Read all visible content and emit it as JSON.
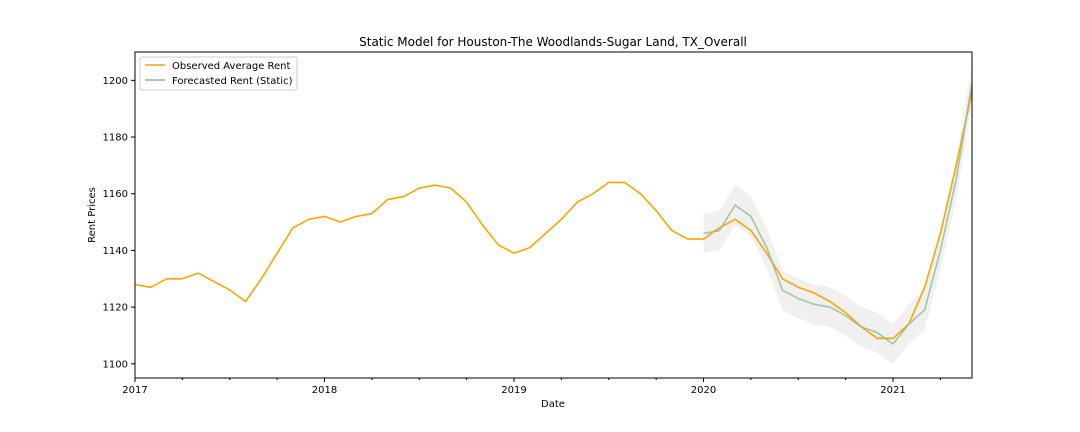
{
  "chart_data": {
    "type": "line",
    "title": "Static Model for Houston-The Woodlands-Sugar Land, TX_Overall",
    "xlabel": "Date",
    "ylabel": "Rent Prices",
    "xlim": [
      "2017-01",
      "2021-06"
    ],
    "ylim": [
      1095,
      1210
    ],
    "x_ticks": [
      "2017",
      "2018",
      "2019",
      "2020",
      "2021"
    ],
    "y_ticks": [
      1100,
      1120,
      1140,
      1160,
      1180,
      1200
    ],
    "grid": false,
    "legend": "top-left",
    "series": [
      {
        "name": "Observed Average Rent",
        "color": "#ffa500",
        "x": [
          "2017-01",
          "2017-02",
          "2017-03",
          "2017-04",
          "2017-05",
          "2017-06",
          "2017-07",
          "2017-08",
          "2017-09",
          "2017-10",
          "2017-11",
          "2017-12",
          "2018-01",
          "2018-02",
          "2018-03",
          "2018-04",
          "2018-05",
          "2018-06",
          "2018-07",
          "2018-08",
          "2018-09",
          "2018-10",
          "2018-11",
          "2018-12",
          "2019-01",
          "2019-02",
          "2019-03",
          "2019-04",
          "2019-05",
          "2019-06",
          "2019-07",
          "2019-08",
          "2019-09",
          "2019-10",
          "2019-11",
          "2019-12",
          "2020-01",
          "2020-02",
          "2020-03",
          "2020-04",
          "2020-05",
          "2020-06",
          "2020-07",
          "2020-08",
          "2020-09",
          "2020-10",
          "2020-11",
          "2020-12",
          "2021-01",
          "2021-02",
          "2021-03",
          "2021-04",
          "2021-05",
          "2021-06"
        ],
        "values": [
          1128,
          1127,
          1130,
          1130,
          1132,
          1129,
          1126,
          1122,
          1130,
          1139,
          1148,
          1151,
          1152,
          1150,
          1152,
          1153,
          1158,
          1159,
          1162,
          1163,
          1162,
          1157,
          1149,
          1142,
          1139,
          1141,
          1146,
          1151,
          1157,
          1160,
          1164,
          1164,
          1160,
          1154,
          1147,
          1144,
          1144,
          1148,
          1151,
          1147,
          1139,
          1130,
          1127,
          1125,
          1122,
          1118,
          1113,
          1109,
          1109,
          1114,
          1127,
          1146,
          1170,
          1196
        ]
      },
      {
        "name": "Forecasted Rent (Static)",
        "color": "#8fbc8f",
        "x": [
          "2020-01",
          "2020-02",
          "2020-03",
          "2020-04",
          "2020-05",
          "2020-06",
          "2020-07",
          "2020-08",
          "2020-09",
          "2020-10",
          "2020-11",
          "2020-12",
          "2021-01",
          "2021-02",
          "2021-03",
          "2021-04",
          "2021-05",
          "2021-06"
        ],
        "values": [
          1146,
          1147,
          1156,
          1152,
          1141,
          1126,
          1123,
          1121,
          1120,
          1117,
          1113,
          1111,
          1107,
          1114,
          1119,
          1140,
          1165,
          1199
        ],
        "ci_lower": [
          1139,
          1140,
          1149,
          1145,
          1134,
          1119,
          1116,
          1114,
          1113,
          1110,
          1106,
          1104,
          1100,
          1107,
          1112,
          1133,
          1158,
          1192
        ],
        "ci_upper": [
          1153,
          1154,
          1163,
          1159,
          1148,
          1133,
          1130,
          1128,
          1127,
          1124,
          1120,
          1118,
          1114,
          1121,
          1126,
          1147,
          1172,
          1206
        ]
      }
    ]
  }
}
